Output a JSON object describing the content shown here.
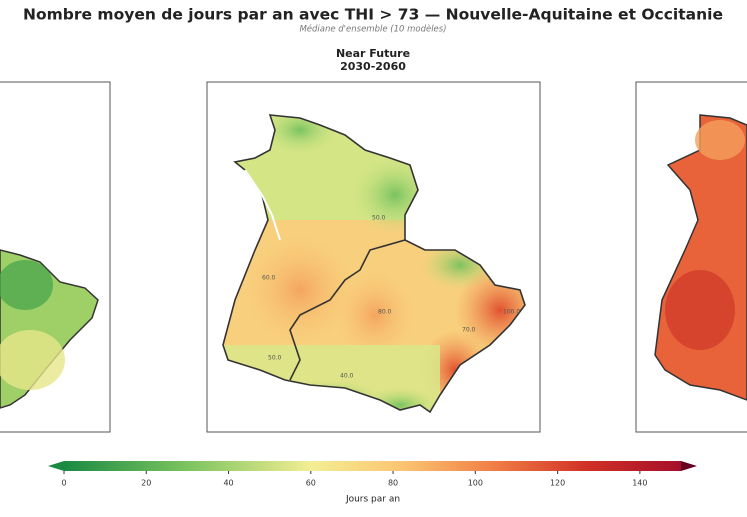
{
  "header": {
    "title": "Nombre moyen de jours par an avec THI > 73 — Nouvelle-Aquitaine et Occitanie",
    "subtitle": "Médiane d'ensemble (10 modèles)"
  },
  "panel": {
    "title": "Near Future",
    "period": "2030-2060",
    "contour_labels": [
      "50.0",
      "60.0",
      "80.0",
      "70.0",
      "50.0",
      "40.0",
      "100.0"
    ]
  },
  "colorbar": {
    "range": [
      0,
      150
    ],
    "ticks": [
      0,
      20,
      40,
      60,
      80,
      100,
      120,
      140
    ],
    "label": "Jours par an"
  }
}
